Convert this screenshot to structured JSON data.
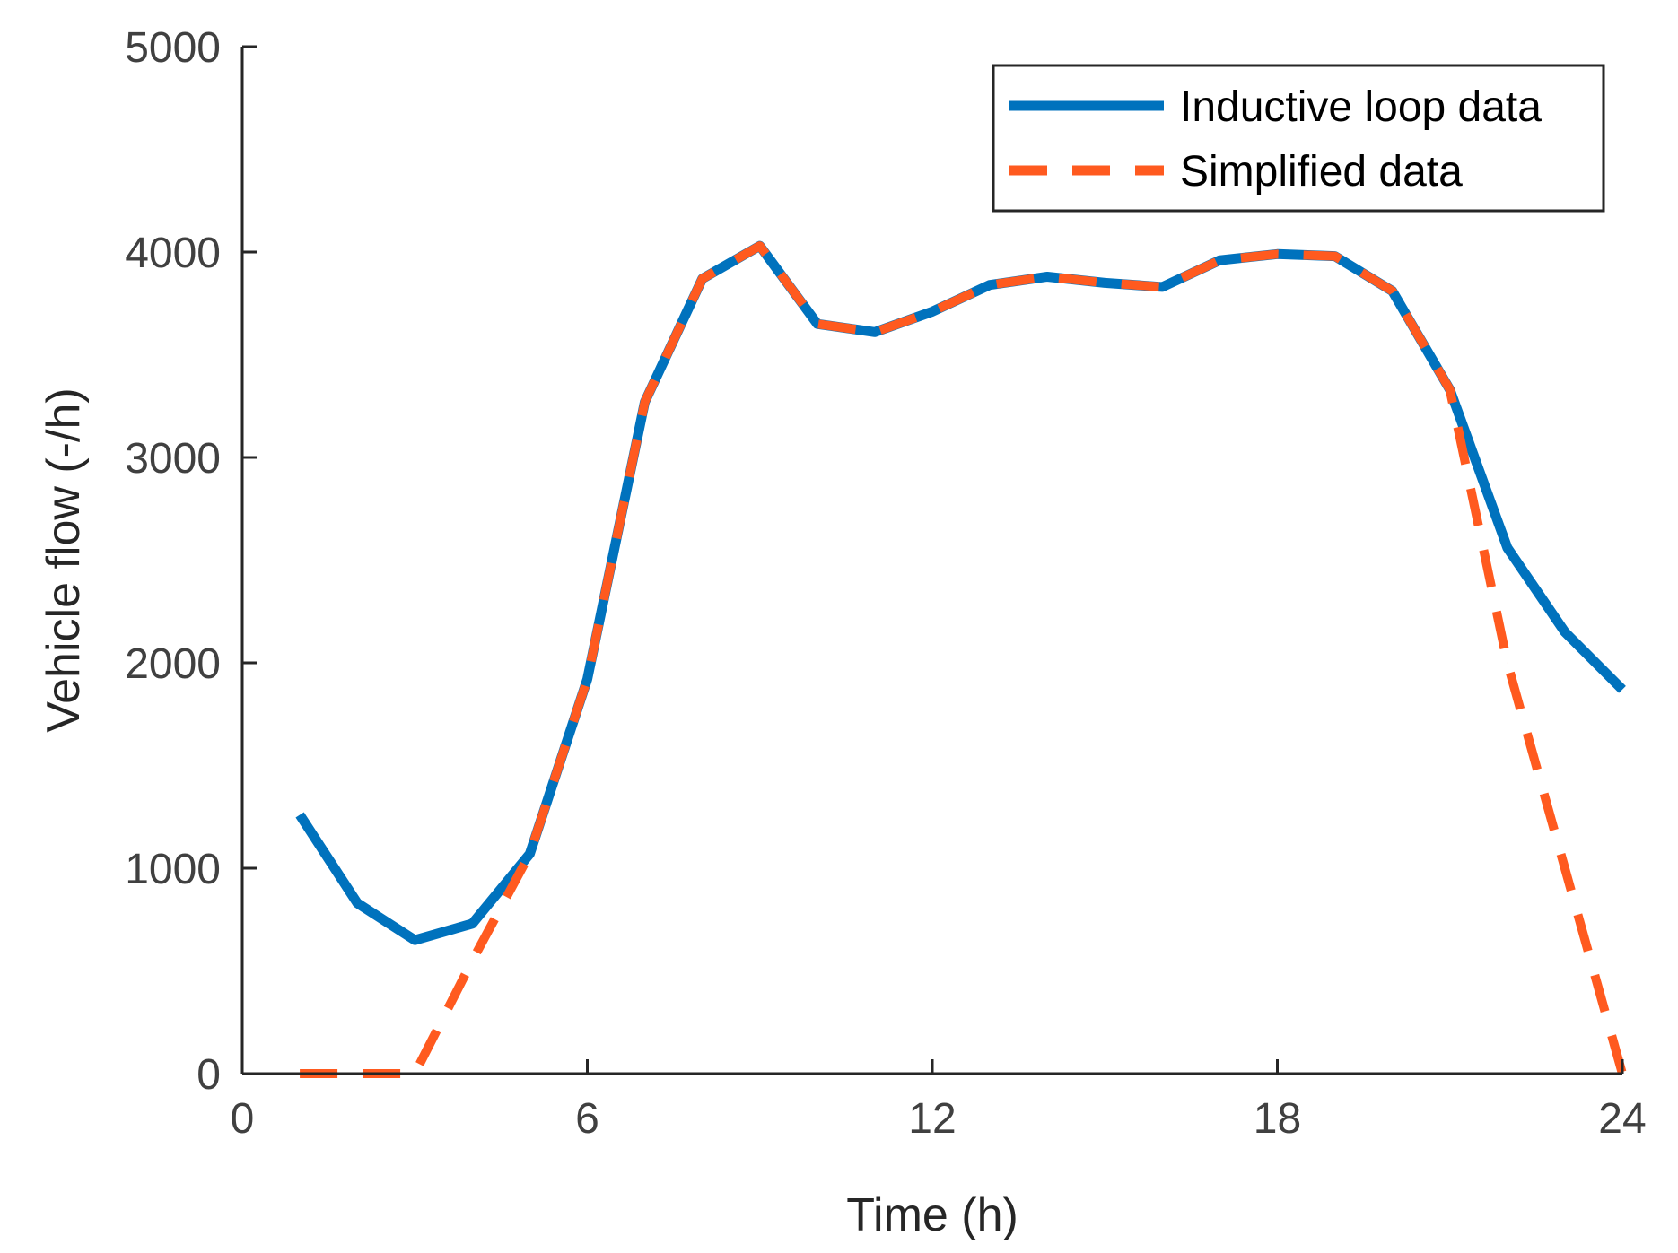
{
  "chart_data": {
    "type": "line",
    "title": "",
    "xlabel": "Time (h)",
    "ylabel": "Vehicle flow (-/h)",
    "xlim": [
      0,
      24
    ],
    "ylim": [
      0,
      5000
    ],
    "xticks": [
      0,
      6,
      12,
      18,
      24
    ],
    "yticks": [
      0,
      1000,
      2000,
      3000,
      4000,
      5000
    ],
    "grid": false,
    "legend_location": "top-right",
    "series": [
      {
        "name": "Inductive loop data",
        "style": "solid",
        "color": "#0072BD",
        "x": [
          1,
          2,
          3,
          4,
          5,
          6,
          7,
          8,
          9,
          10,
          11,
          12,
          13,
          14,
          15,
          16,
          17,
          18,
          19,
          20,
          21,
          22,
          23,
          24
        ],
        "y": [
          1260,
          830,
          650,
          730,
          1070,
          1920,
          3270,
          3870,
          4030,
          3650,
          3610,
          3710,
          3840,
          3880,
          3850,
          3830,
          3960,
          3990,
          3980,
          3810,
          3330,
          2560,
          2150,
          1870
        ]
      },
      {
        "name": "Simplified data",
        "style": "dashed",
        "color": "#FF5A1F",
        "x": [
          1,
          2,
          3,
          4,
          5,
          6,
          7,
          8,
          9,
          10,
          11,
          12,
          13,
          14,
          15,
          16,
          17,
          18,
          19,
          20,
          21,
          22,
          23,
          24
        ],
        "y": [
          0,
          0,
          0,
          550,
          1070,
          1920,
          3270,
          3870,
          4030,
          3650,
          3610,
          3710,
          3840,
          3880,
          3850,
          3830,
          3960,
          3990,
          3980,
          3810,
          3330,
          2000,
          1000,
          0
        ]
      }
    ]
  }
}
